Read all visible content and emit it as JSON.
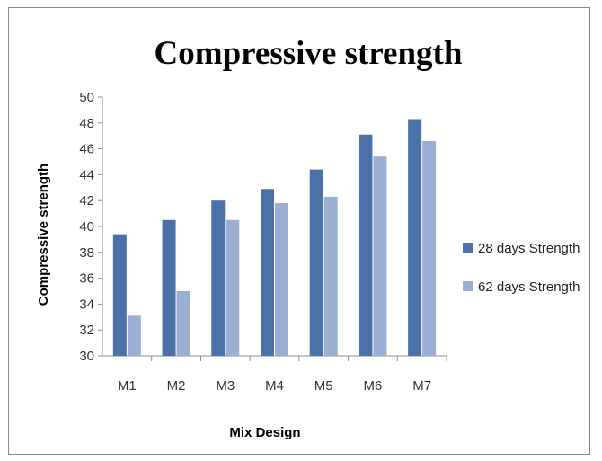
{
  "chart_data": {
    "type": "bar",
    "title": "Compressive strength",
    "xlabel": "Mix Design",
    "ylabel": "Compressive strength",
    "categories": [
      "M1",
      "M2",
      "M3",
      "M4",
      "M5",
      "M6",
      "M7"
    ],
    "series": [
      {
        "name": "28 days Strength",
        "values": [
          39.4,
          40.5,
          42.0,
          42.9,
          44.4,
          47.1,
          48.3
        ]
      },
      {
        "name": "62 days Strength",
        "values": [
          33.1,
          35.0,
          40.5,
          41.8,
          42.3,
          45.4,
          46.6
        ]
      }
    ],
    "ylim": [
      30,
      50
    ],
    "yticks": [
      "30",
      "32",
      "34",
      "36",
      "38",
      "40",
      "42",
      "44",
      "46",
      "48",
      "50"
    ],
    "grid": false,
    "legend_position": "right",
    "colors": [
      "#4a72a8",
      "#9aafd3"
    ]
  }
}
